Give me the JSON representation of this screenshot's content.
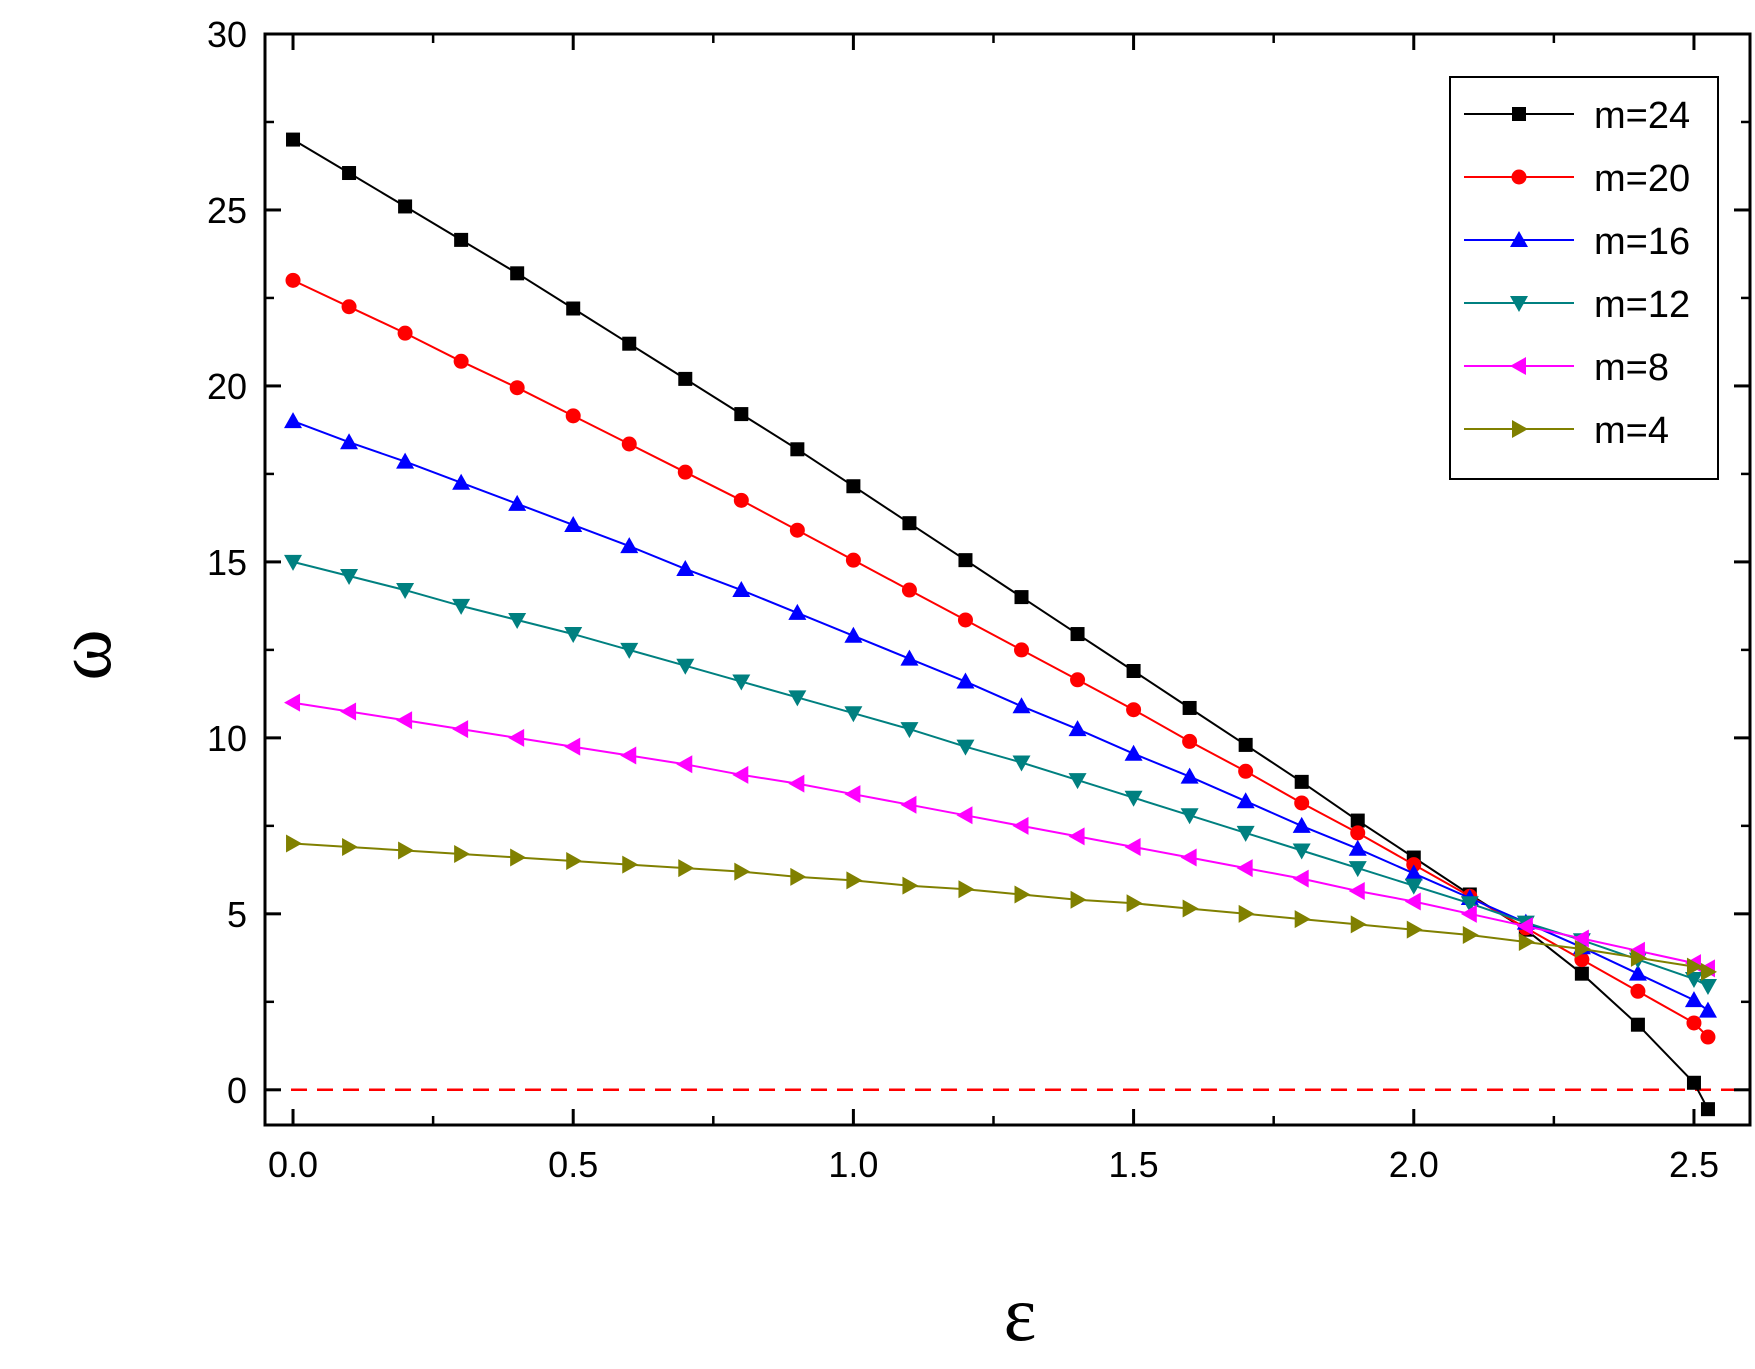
{
  "chart_data": {
    "type": "line",
    "xlabel": "ε",
    "ylabel": "ω",
    "xlim": [
      -0.05,
      2.6
    ],
    "ylim": [
      -1,
      30
    ],
    "x_ticks": [
      "0.0",
      "0.5",
      "1.0",
      "1.5",
      "2.0",
      "2.5"
    ],
    "y_ticks": [
      "0",
      "5",
      "10",
      "15",
      "20",
      "25",
      "30"
    ],
    "grid": false,
    "legend_position": "top-right",
    "reference_line": {
      "y": 0,
      "style": "dashed",
      "color": "#ff0000"
    },
    "series": [
      {
        "name": "m=24",
        "color": "#000000",
        "marker": "square",
        "x": [
          0.0,
          0.1,
          0.2,
          0.3,
          0.4,
          0.5,
          0.6,
          0.7,
          0.8,
          0.9,
          1.0,
          1.1,
          1.2,
          1.3,
          1.4,
          1.5,
          1.6,
          1.7,
          1.8,
          1.9,
          2.0,
          2.1,
          2.2,
          2.3,
          2.4,
          2.5,
          2.525
        ],
        "y": [
          27.0,
          26.05,
          25.1,
          24.15,
          23.2,
          22.2,
          21.2,
          20.2,
          19.2,
          18.2,
          17.15,
          16.1,
          15.05,
          14.0,
          12.95,
          11.9,
          10.85,
          9.8,
          8.75,
          7.65,
          6.6,
          5.55,
          4.55,
          3.3,
          1.85,
          0.2,
          -0.55
        ]
      },
      {
        "name": "m=20",
        "color": "#ff0000",
        "marker": "circle",
        "x": [
          0.0,
          0.1,
          0.2,
          0.3,
          0.4,
          0.5,
          0.6,
          0.7,
          0.8,
          0.9,
          1.0,
          1.1,
          1.2,
          1.3,
          1.4,
          1.5,
          1.6,
          1.7,
          1.8,
          1.9,
          2.0,
          2.1,
          2.2,
          2.3,
          2.4,
          2.5,
          2.525
        ],
        "y": [
          23.0,
          22.25,
          21.5,
          20.7,
          19.95,
          19.15,
          18.35,
          17.55,
          16.75,
          15.9,
          15.05,
          14.2,
          13.35,
          12.5,
          11.65,
          10.8,
          9.9,
          9.05,
          8.15,
          7.3,
          6.4,
          5.5,
          4.6,
          3.7,
          2.8,
          1.9,
          1.5
        ]
      },
      {
        "name": "m=16",
        "color": "#0000ff",
        "marker": "triangle-up",
        "x": [
          0.0,
          0.1,
          0.2,
          0.3,
          0.4,
          0.5,
          0.6,
          0.7,
          0.8,
          0.9,
          1.0,
          1.1,
          1.2,
          1.3,
          1.4,
          1.5,
          1.6,
          1.7,
          1.8,
          1.9,
          2.0,
          2.1,
          2.2,
          2.3,
          2.4,
          2.5,
          2.525
        ],
        "y": [
          19.0,
          18.4,
          17.85,
          17.25,
          16.65,
          16.05,
          15.45,
          14.8,
          14.2,
          13.55,
          12.9,
          12.25,
          11.6,
          10.9,
          10.25,
          9.55,
          8.9,
          8.2,
          7.5,
          6.85,
          6.15,
          5.45,
          4.75,
          4.05,
          3.3,
          2.55,
          2.25
        ]
      },
      {
        "name": "m=12",
        "color": "#008080",
        "marker": "triangle-down",
        "x": [
          0.0,
          0.1,
          0.2,
          0.3,
          0.4,
          0.5,
          0.6,
          0.7,
          0.8,
          0.9,
          1.0,
          1.1,
          1.2,
          1.3,
          1.4,
          1.5,
          1.6,
          1.7,
          1.8,
          1.9,
          2.0,
          2.1,
          2.2,
          2.3,
          2.4,
          2.5,
          2.525
        ],
        "y": [
          15.0,
          14.6,
          14.2,
          13.75,
          13.35,
          12.95,
          12.5,
          12.05,
          11.6,
          11.15,
          10.7,
          10.25,
          9.75,
          9.3,
          8.8,
          8.3,
          7.8,
          7.3,
          6.8,
          6.3,
          5.8,
          5.3,
          4.75,
          4.25,
          3.7,
          3.15,
          2.95
        ]
      },
      {
        "name": "m=8",
        "color": "#ff00ff",
        "marker": "triangle-left",
        "x": [
          0.0,
          0.1,
          0.2,
          0.3,
          0.4,
          0.5,
          0.6,
          0.7,
          0.8,
          0.9,
          1.0,
          1.1,
          1.2,
          1.3,
          1.4,
          1.5,
          1.6,
          1.7,
          1.8,
          1.9,
          2.0,
          2.1,
          2.2,
          2.3,
          2.4,
          2.5,
          2.525
        ],
        "y": [
          11.0,
          10.75,
          10.5,
          10.25,
          10.0,
          9.75,
          9.5,
          9.25,
          8.95,
          8.7,
          8.4,
          8.1,
          7.8,
          7.5,
          7.2,
          6.9,
          6.6,
          6.3,
          6.0,
          5.65,
          5.35,
          5.0,
          4.65,
          4.3,
          3.95,
          3.6,
          3.45
        ]
      },
      {
        "name": "m=4",
        "color": "#808000",
        "marker": "triangle-right",
        "x": [
          0.0,
          0.1,
          0.2,
          0.3,
          0.4,
          0.5,
          0.6,
          0.7,
          0.8,
          0.9,
          1.0,
          1.1,
          1.2,
          1.3,
          1.4,
          1.5,
          1.6,
          1.7,
          1.8,
          1.9,
          2.0,
          2.1,
          2.2,
          2.3,
          2.4,
          2.5,
          2.525
        ],
        "y": [
          7.0,
          6.9,
          6.8,
          6.7,
          6.6,
          6.5,
          6.4,
          6.3,
          6.2,
          6.05,
          5.95,
          5.8,
          5.7,
          5.55,
          5.4,
          5.3,
          5.15,
          5.0,
          4.85,
          4.7,
          4.55,
          4.4,
          4.2,
          4.0,
          3.75,
          3.5,
          3.35
        ]
      }
    ]
  }
}
